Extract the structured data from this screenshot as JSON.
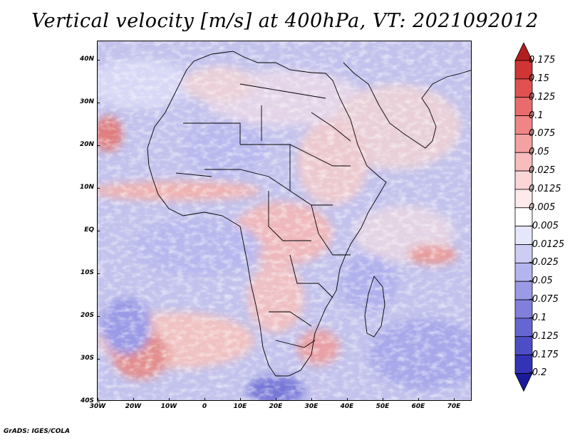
{
  "title": "Vertical velocity [m/s] at 400hPa, VT: 2021092012",
  "lat_labels": [
    "40N",
    "30N",
    "20N",
    "10N",
    "EQ",
    "10S",
    "20S",
    "30S",
    "40S"
  ],
  "lon_labels": [
    "30W",
    "20W",
    "10W",
    "0",
    "10E",
    "20E",
    "30E",
    "40E",
    "50E",
    "60E",
    "70E"
  ],
  "colorbar": {
    "labels": [
      "0.175",
      "0.15",
      "0.125",
      "0.1",
      "0.075",
      "0.05",
      "0.025",
      "0.0125",
      "0.005",
      "-0.005",
      "-0.0125",
      "-0.025",
      "-0.05",
      "-0.075",
      "-0.1",
      "-0.125",
      "-0.175",
      "-0.2"
    ],
    "colors": [
      "#b21f1f",
      "#d03535",
      "#e05050",
      "#ea6b6b",
      "#f08585",
      "#f4a1a1",
      "#f8bcbc",
      "#fbd6d6",
      "#fdeaea",
      "#ffffff",
      "#e6e6fa",
      "#cdcdf4",
      "#b4b4ee",
      "#9a9ae6",
      "#8080dc",
      "#6666d2",
      "#4d4dc6",
      "#3333b5",
      "#1a1a9c"
    ]
  },
  "footer": "GrADS: IGES/COLA"
}
